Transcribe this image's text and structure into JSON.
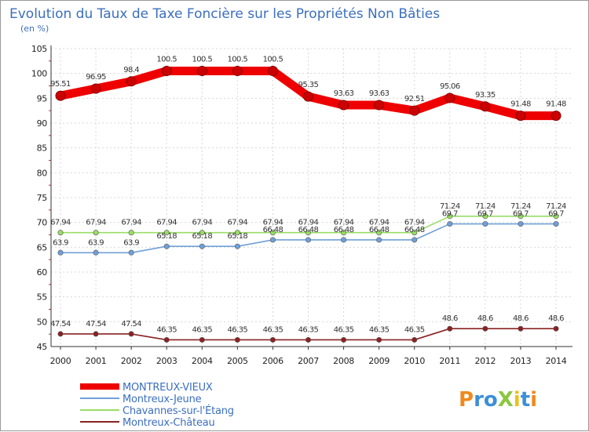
{
  "chart_data": {
    "type": "line",
    "title": "Evolution du Taux de Taxe Foncière sur les Propriétés Non Bâties",
    "ylabel": "(en %)",
    "xlabel": "",
    "ylim": [
      45,
      105
    ],
    "yticks": [
      "45",
      "50",
      "55",
      "60",
      "65",
      "70",
      "75",
      "80",
      "85",
      "90",
      "95",
      "100",
      "105"
    ],
    "categories": [
      "2000",
      "2001",
      "2002",
      "2003",
      "2004",
      "2005",
      "2006",
      "2007",
      "2008",
      "2009",
      "2010",
      "2011",
      "2012",
      "2013",
      "2014"
    ],
    "series": [
      {
        "name": "MONTREUX-VIEUX",
        "color": "#ee0000",
        "values": [
          95.51,
          96.95,
          98.4,
          100.5,
          100.5,
          100.5,
          100.5,
          95.35,
          93.63,
          93.63,
          92.51,
          95.06,
          93.35,
          91.48,
          91.48
        ],
        "labels": [
          "95.51",
          "96.95",
          "98.4",
          "100.5",
          "100.5",
          "100.5",
          "100.5",
          "95.35",
          "93.63",
          "93.63",
          "92.51",
          "95.06",
          "93.35",
          "91.48",
          "91.48"
        ]
      },
      {
        "name": "Montreux-Jeune",
        "color": "#6fa0d8",
        "values": [
          63.9,
          63.9,
          63.9,
          65.18,
          65.18,
          65.18,
          66.48,
          66.48,
          66.48,
          66.48,
          66.48,
          69.7,
          69.7,
          69.7,
          69.7
        ],
        "labels": [
          "63.9",
          "63.9",
          "63.9",
          "65.18",
          "65.18",
          "65.18",
          "66.48",
          "66.48",
          "66.48",
          "66.48",
          "66.48",
          "69.7",
          "69.7",
          "69.7",
          "69.7"
        ]
      },
      {
        "name": "Chavannes-sur-l'Étang",
        "color": "#99dd66",
        "values": [
          67.94,
          67.94,
          67.94,
          67.94,
          67.94,
          67.94,
          67.94,
          67.94,
          67.94,
          67.94,
          67.94,
          71.24,
          71.24,
          71.24,
          71.24
        ],
        "labels": [
          "67.94",
          "67.94",
          "67.94",
          "67.94",
          "67.94",
          "67.94",
          "67.94",
          "67.94",
          "67.94",
          "67.94",
          "67.94",
          "71.24",
          "71.24",
          "71.24",
          "71.24"
        ]
      },
      {
        "name": "Montreux-Château",
        "color": "#8a2222",
        "values": [
          47.54,
          47.54,
          47.54,
          46.35,
          46.35,
          46.35,
          46.35,
          46.35,
          46.35,
          46.35,
          46.35,
          48.6,
          48.6,
          48.6,
          48.6
        ],
        "labels": [
          "47.54",
          "47.54",
          "47.54",
          "46.35",
          "46.35",
          "46.35",
          "46.35",
          "46.35",
          "46.35",
          "46.35",
          "46.35",
          "48.6",
          "48.6",
          "48.6",
          "48.6"
        ]
      }
    ]
  },
  "brand": {
    "text": "ProXiti"
  }
}
